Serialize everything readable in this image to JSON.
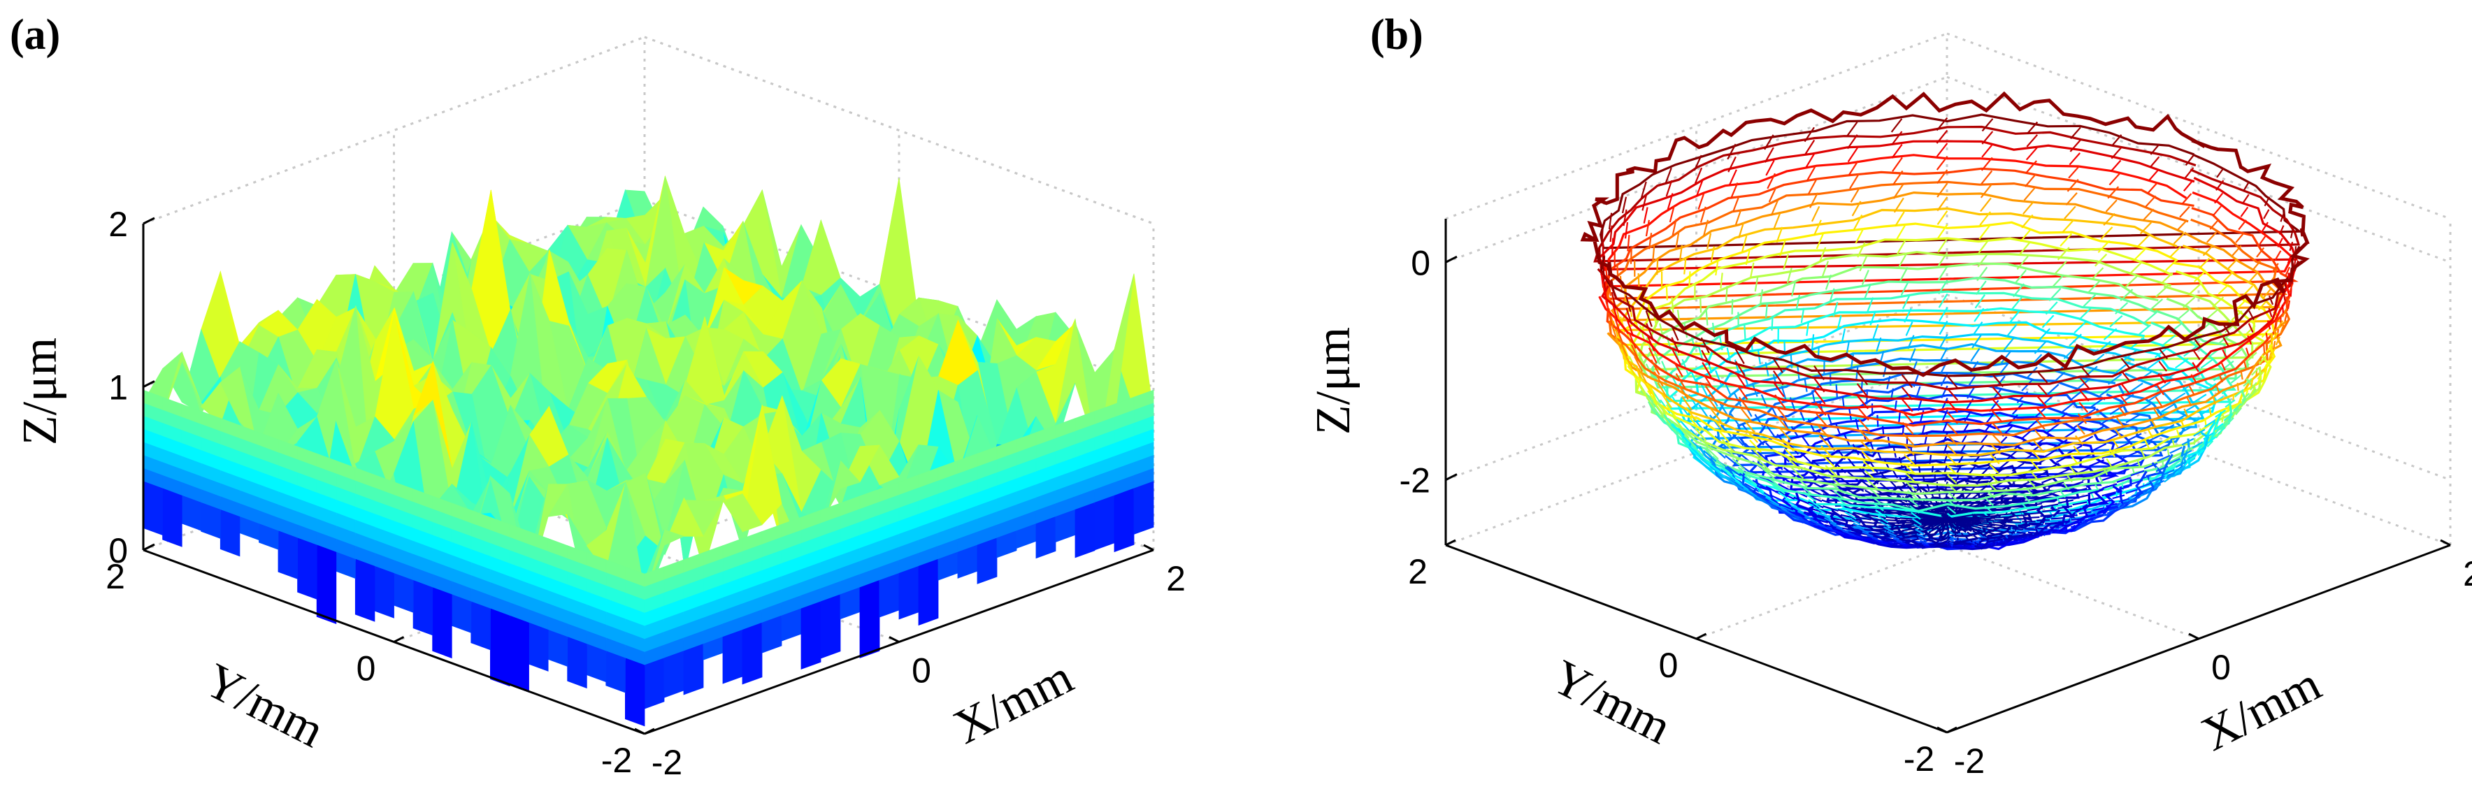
{
  "chart_data": [
    {
      "id": "a",
      "type": "surface",
      "panel_label": "(a)",
      "surface_style": "filled rough surface, jet colormap",
      "xlabel": "X/mm",
      "ylabel": "Y/mm",
      "zlabel": "Z/μm",
      "xlim": [
        -2,
        2
      ],
      "ylim": [
        -2,
        2
      ],
      "zlim": [
        0,
        2
      ],
      "x_ticks": [
        -2,
        0,
        2
      ],
      "y_ticks": [
        -2,
        0,
        2
      ],
      "z_ticks": [
        0,
        1,
        2
      ],
      "x_tick_labels": [
        "-2",
        "0",
        "2"
      ],
      "y_tick_labels": [
        "-2",
        "0",
        "2"
      ],
      "z_tick_labels": [
        "0",
        "1",
        "2"
      ],
      "surface_mean_z": 1.0,
      "surface_z_range": [
        0.3,
        1.8
      ],
      "colormap": [
        "#00008f",
        "#0000ff",
        "#0080ff",
        "#00ffff",
        "#80ff80",
        "#ffff00",
        "#ff8000",
        "#ff0000",
        "#800000"
      ]
    },
    {
      "id": "b",
      "type": "surface",
      "panel_label": "(b)",
      "surface_style": "hemispherical bowl mesh, jet colormap",
      "xlabel": "X/mm",
      "ylabel": "Y/mm",
      "zlabel": "Z/μm",
      "xlim": [
        -2,
        2
      ],
      "ylim": [
        -2,
        2
      ],
      "zlim": [
        -2.6,
        0.4
      ],
      "x_ticks": [
        -2,
        0,
        2
      ],
      "y_ticks": [
        -2,
        0,
        2
      ],
      "z_ticks": [
        -2,
        0
      ],
      "x_tick_labels": [
        "-2",
        "0",
        "2"
      ],
      "y_tick_labels": [
        "-2",
        "0",
        "2"
      ],
      "z_tick_labels": [
        "-2",
        "0"
      ],
      "bowl_radius": 2,
      "bowl_depth": 2.5,
      "colormap": [
        "#00008f",
        "#0000ff",
        "#0080ff",
        "#00ffff",
        "#80ff80",
        "#ffff00",
        "#ff8000",
        "#ff0000",
        "#800000"
      ]
    }
  ]
}
